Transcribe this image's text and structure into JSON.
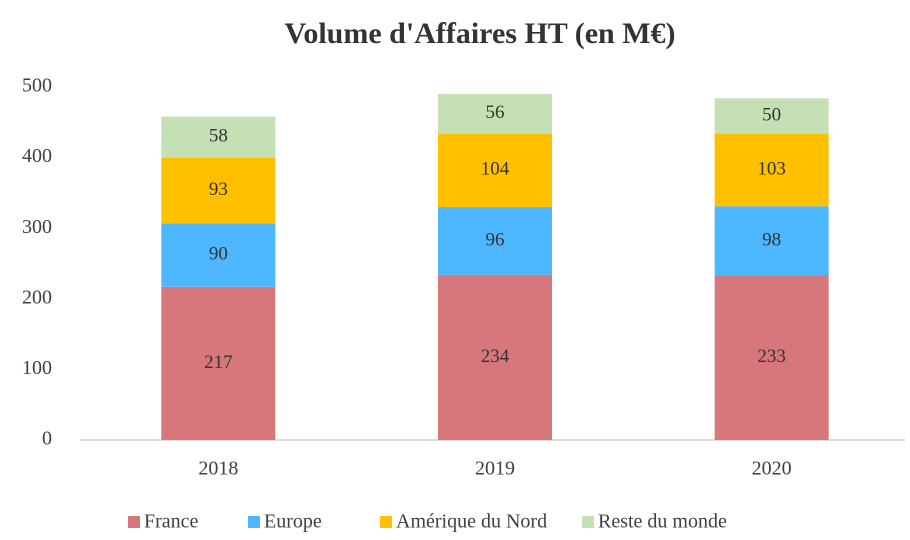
{
  "chart_data": {
    "type": "stacked_bar",
    "title": "Volume d'Affaires HT (en M€)",
    "categories": [
      "2018",
      "2019",
      "2020"
    ],
    "series": [
      {
        "name": "France",
        "color": "#d6777b",
        "values": [
          217,
          234,
          233
        ]
      },
      {
        "name": "Europe",
        "color": "#4db8ff",
        "values": [
          90,
          96,
          98
        ]
      },
      {
        "name": "Amérique du Nord",
        "color": "#ffc000",
        "values": [
          93,
          104,
          103
        ]
      },
      {
        "name": "Reste du monde",
        "color": "#c5e0b4",
        "values": [
          58,
          56,
          50
        ]
      }
    ],
    "ylim": [
      0,
      500
    ],
    "yticks": [
      0,
      100,
      200,
      300,
      400,
      500
    ],
    "grid": false,
    "legend": "bottom"
  }
}
